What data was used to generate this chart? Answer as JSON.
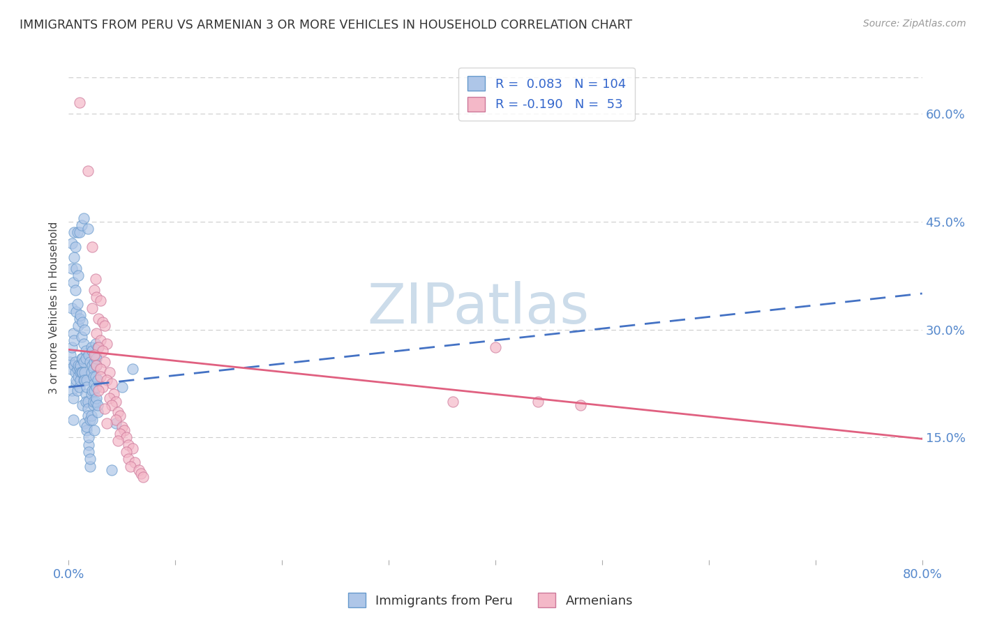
{
  "title": "IMMIGRANTS FROM PERU VS ARMENIAN 3 OR MORE VEHICLES IN HOUSEHOLD CORRELATION CHART",
  "source": "Source: ZipAtlas.com",
  "ylabel": "3 or more Vehicles in Household",
  "ytick_labels": [
    "15.0%",
    "30.0%",
    "45.0%",
    "60.0%"
  ],
  "ytick_values": [
    0.15,
    0.3,
    0.45,
    0.6
  ],
  "xlim": [
    0.0,
    0.8
  ],
  "ylim": [
    -0.02,
    0.68
  ],
  "watermark": "ZIPatlas",
  "blue_scatter_color": "#aec6e8",
  "blue_scatter_edge": "#6699cc",
  "pink_scatter_color": "#f4b8c8",
  "pink_scatter_edge": "#cc7799",
  "blue_line_color": "#4472c4",
  "pink_line_color": "#e06080",
  "watermark_color": "#c8d8ea",
  "right_axis_color": "#5588cc",
  "grid_color": "#cccccc",
  "background_color": "#ffffff",
  "blue_line_x": [
    0.0,
    0.8
  ],
  "blue_line_y": [
    0.22,
    0.35
  ],
  "pink_line_x": [
    0.0,
    0.8
  ],
  "pink_line_y": [
    0.272,
    0.148
  ],
  "blue_points": [
    [
      0.001,
      0.255
    ],
    [
      0.002,
      0.265
    ],
    [
      0.002,
      0.245
    ],
    [
      0.003,
      0.42
    ],
    [
      0.003,
      0.385
    ],
    [
      0.003,
      0.33
    ],
    [
      0.003,
      0.215
    ],
    [
      0.003,
      0.275
    ],
    [
      0.004,
      0.365
    ],
    [
      0.004,
      0.295
    ],
    [
      0.004,
      0.205
    ],
    [
      0.004,
      0.175
    ],
    [
      0.005,
      0.435
    ],
    [
      0.005,
      0.4
    ],
    [
      0.005,
      0.285
    ],
    [
      0.005,
      0.25
    ],
    [
      0.006,
      0.415
    ],
    [
      0.006,
      0.355
    ],
    [
      0.006,
      0.255
    ],
    [
      0.006,
      0.24
    ],
    [
      0.007,
      0.385
    ],
    [
      0.007,
      0.325
    ],
    [
      0.007,
      0.225
    ],
    [
      0.007,
      0.23
    ],
    [
      0.008,
      0.435
    ],
    [
      0.008,
      0.335
    ],
    [
      0.008,
      0.245
    ],
    [
      0.008,
      0.215
    ],
    [
      0.009,
      0.375
    ],
    [
      0.009,
      0.305
    ],
    [
      0.009,
      0.235
    ],
    [
      0.009,
      0.25
    ],
    [
      0.01,
      0.435
    ],
    [
      0.01,
      0.315
    ],
    [
      0.01,
      0.245
    ],
    [
      0.01,
      0.22
    ],
    [
      0.011,
      0.32
    ],
    [
      0.011,
      0.25
    ],
    [
      0.011,
      0.24
    ],
    [
      0.011,
      0.23
    ],
    [
      0.012,
      0.445
    ],
    [
      0.012,
      0.29
    ],
    [
      0.012,
      0.26
    ],
    [
      0.012,
      0.24
    ],
    [
      0.013,
      0.31
    ],
    [
      0.013,
      0.26
    ],
    [
      0.013,
      0.24
    ],
    [
      0.013,
      0.195
    ],
    [
      0.014,
      0.455
    ],
    [
      0.014,
      0.28
    ],
    [
      0.014,
      0.255
    ],
    [
      0.014,
      0.23
    ],
    [
      0.015,
      0.3
    ],
    [
      0.015,
      0.24
    ],
    [
      0.015,
      0.23
    ],
    [
      0.015,
      0.17
    ],
    [
      0.016,
      0.27
    ],
    [
      0.016,
      0.26
    ],
    [
      0.016,
      0.21
    ],
    [
      0.016,
      0.2
    ],
    [
      0.017,
      0.23
    ],
    [
      0.017,
      0.22
    ],
    [
      0.017,
      0.16
    ],
    [
      0.017,
      0.165
    ],
    [
      0.018,
      0.44
    ],
    [
      0.018,
      0.2
    ],
    [
      0.018,
      0.19
    ],
    [
      0.018,
      0.18
    ],
    [
      0.019,
      0.265
    ],
    [
      0.019,
      0.14
    ],
    [
      0.019,
      0.15
    ],
    [
      0.019,
      0.13
    ],
    [
      0.02,
      0.11
    ],
    [
      0.02,
      0.255
    ],
    [
      0.02,
      0.175
    ],
    [
      0.02,
      0.12
    ],
    [
      0.021,
      0.275
    ],
    [
      0.021,
      0.24
    ],
    [
      0.021,
      0.18
    ],
    [
      0.021,
      0.21
    ],
    [
      0.022,
      0.27
    ],
    [
      0.022,
      0.215
    ],
    [
      0.022,
      0.25
    ],
    [
      0.022,
      0.175
    ],
    [
      0.023,
      0.245
    ],
    [
      0.023,
      0.235
    ],
    [
      0.023,
      0.195
    ],
    [
      0.023,
      0.2
    ],
    [
      0.024,
      0.255
    ],
    [
      0.024,
      0.225
    ],
    [
      0.024,
      0.16
    ],
    [
      0.024,
      0.215
    ],
    [
      0.025,
      0.265
    ],
    [
      0.025,
      0.235
    ],
    [
      0.025,
      0.28
    ],
    [
      0.025,
      0.2
    ],
    [
      0.026,
      0.25
    ],
    [
      0.026,
      0.22
    ],
    [
      0.026,
      0.26
    ],
    [
      0.026,
      0.205
    ],
    [
      0.027,
      0.23
    ],
    [
      0.027,
      0.275
    ],
    [
      0.027,
      0.185
    ],
    [
      0.027,
      0.195
    ],
    [
      0.04,
      0.105
    ],
    [
      0.044,
      0.17
    ],
    [
      0.05,
      0.22
    ],
    [
      0.06,
      0.245
    ]
  ],
  "pink_points": [
    [
      0.01,
      0.615
    ],
    [
      0.018,
      0.52
    ],
    [
      0.022,
      0.415
    ],
    [
      0.025,
      0.37
    ],
    [
      0.024,
      0.355
    ],
    [
      0.026,
      0.345
    ],
    [
      0.03,
      0.34
    ],
    [
      0.022,
      0.33
    ],
    [
      0.028,
      0.315
    ],
    [
      0.032,
      0.31
    ],
    [
      0.034,
      0.305
    ],
    [
      0.026,
      0.295
    ],
    [
      0.03,
      0.285
    ],
    [
      0.036,
      0.28
    ],
    [
      0.028,
      0.275
    ],
    [
      0.032,
      0.27
    ],
    [
      0.024,
      0.265
    ],
    [
      0.034,
      0.255
    ],
    [
      0.026,
      0.25
    ],
    [
      0.03,
      0.245
    ],
    [
      0.038,
      0.24
    ],
    [
      0.03,
      0.235
    ],
    [
      0.036,
      0.23
    ],
    [
      0.04,
      0.225
    ],
    [
      0.032,
      0.22
    ],
    [
      0.028,
      0.215
    ],
    [
      0.042,
      0.21
    ],
    [
      0.038,
      0.205
    ],
    [
      0.044,
      0.2
    ],
    [
      0.04,
      0.195
    ],
    [
      0.034,
      0.19
    ],
    [
      0.046,
      0.185
    ],
    [
      0.048,
      0.18
    ],
    [
      0.044,
      0.175
    ],
    [
      0.036,
      0.17
    ],
    [
      0.05,
      0.165
    ],
    [
      0.052,
      0.16
    ],
    [
      0.048,
      0.155
    ],
    [
      0.054,
      0.15
    ],
    [
      0.046,
      0.145
    ],
    [
      0.056,
      0.14
    ],
    [
      0.06,
      0.135
    ],
    [
      0.054,
      0.13
    ],
    [
      0.056,
      0.12
    ],
    [
      0.062,
      0.115
    ],
    [
      0.058,
      0.11
    ],
    [
      0.066,
      0.105
    ],
    [
      0.068,
      0.1
    ],
    [
      0.07,
      0.095
    ],
    [
      0.36,
      0.2
    ],
    [
      0.4,
      0.275
    ],
    [
      0.44,
      0.2
    ],
    [
      0.48,
      0.195
    ]
  ]
}
